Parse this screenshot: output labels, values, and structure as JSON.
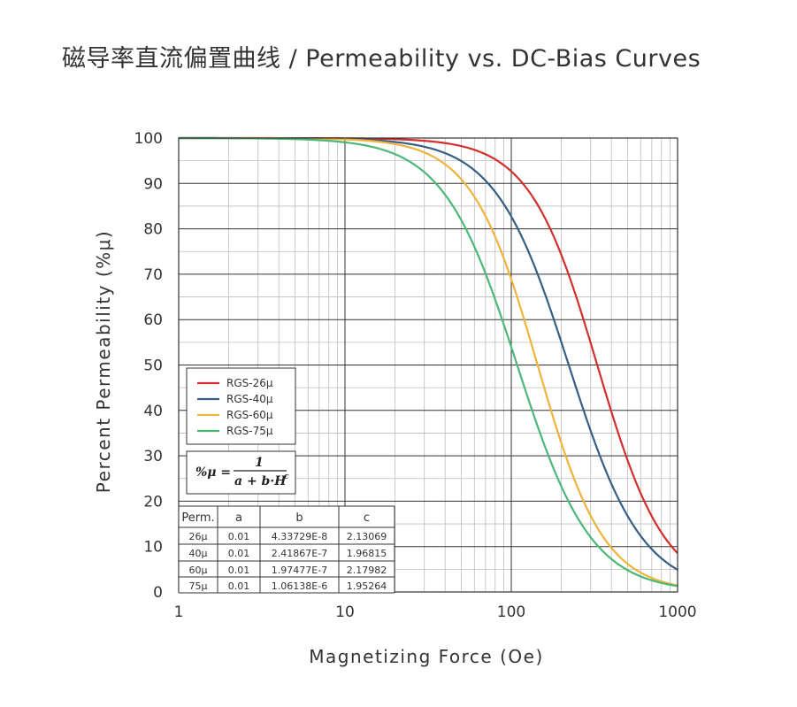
{
  "chart_data": {
    "type": "line",
    "title": "磁导率直流偏置曲线 / Permeability vs. DC-Bias Curves",
    "xlabel": "Magnetizing Force (Oe)",
    "ylabel": "Percent Permeability (%μ)",
    "xscale": "log",
    "xlim": [
      1,
      1000
    ],
    "ylim": [
      0,
      100
    ],
    "x_ticks": [
      "1",
      "10",
      "100",
      "1000"
    ],
    "y_ticks": [
      "0",
      "10",
      "20",
      "30",
      "40",
      "50",
      "60",
      "70",
      "80",
      "90",
      "100"
    ],
    "grid": true,
    "legend_position": "lower-left",
    "series": [
      {
        "name": "RGS-26μ",
        "color": "#d32f2f",
        "a": 0.01,
        "b": 4.33729e-08,
        "c": 2.13069
      },
      {
        "name": "RGS-40μ",
        "color": "#365f85",
        "a": 0.01,
        "b": 2.41867e-07,
        "c": 1.96815
      },
      {
        "name": "RGS-60μ",
        "color": "#f0b43c",
        "a": 0.01,
        "b": 1.97477e-07,
        "c": 2.17982
      },
      {
        "name": "RGS-75μ",
        "color": "#4cb878",
        "a": 0.01,
        "b": 1.06138e-06,
        "c": 1.95264
      }
    ],
    "formula": {
      "lhs": "%μ =",
      "numerator": "1",
      "denominator": "a + b·H",
      "exponent": "c"
    },
    "table": {
      "headers": [
        "Perm.",
        "a",
        "b",
        "c"
      ],
      "rows": [
        [
          "26μ",
          "0.01",
          "4.33729E-8",
          "2.13069"
        ],
        [
          "40μ",
          "0.01",
          "2.41867E-7",
          "1.96815"
        ],
        [
          "60μ",
          "0.01",
          "1.97477E-7",
          "2.17982"
        ],
        [
          "75μ",
          "0.01",
          "1.06138E-6",
          "1.95264"
        ]
      ]
    }
  }
}
